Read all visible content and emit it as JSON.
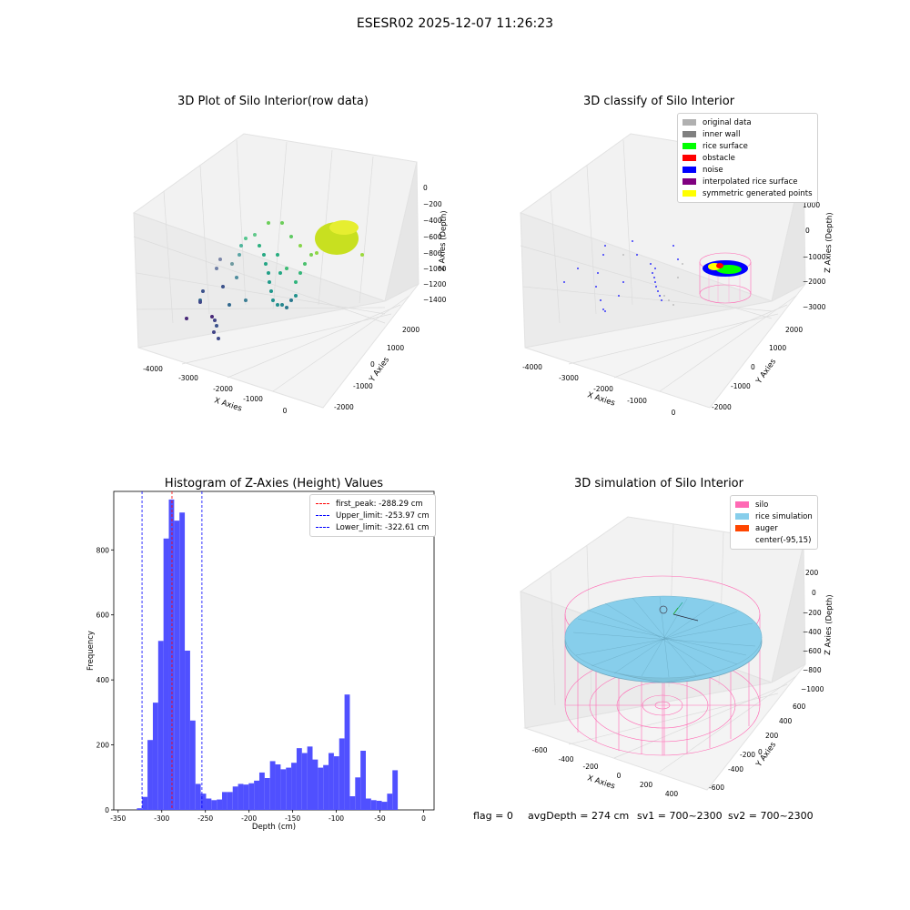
{
  "figure": {
    "suptitle": "ESESR02 2025-12-07 11:26:23",
    "status": {
      "flag": "flag = 0",
      "avg_depth": "avgDepth = 274 cm",
      "sv1": "sv1 = 700~2300",
      "sv2": "sv2 = 700~2300"
    }
  },
  "panels": {
    "raw": {
      "title": "3D Plot of Silo Interior(row data)",
      "xlabel": "X Axies",
      "ylabel": "Y Axies",
      "zlabel": "Z Axies (Depth)",
      "xticks": [
        "-4000",
        "-3000",
        "-2000",
        "-1000",
        "0"
      ],
      "yticks": [
        "-2000",
        "-1000",
        "0",
        "1000",
        "2000"
      ],
      "zticks": [
        "0",
        "−200",
        "−400",
        "−600",
        "−800",
        "−1000",
        "−1200",
        "−1400"
      ]
    },
    "classify": {
      "title": "3D classify of Silo Interior",
      "xlabel": "X Axies",
      "ylabel": "Y Axies",
      "zlabel": "Z Axies (Depth)",
      "xticks": [
        "-4000",
        "-3000",
        "-2000",
        "-1000",
        "0"
      ],
      "yticks": [
        "-2000",
        "-1000",
        "0",
        "1000",
        "2000"
      ],
      "zticks": [
        "1000",
        "0",
        "−1000",
        "−2000",
        "−3000"
      ],
      "legend": [
        {
          "label": "original data",
          "color": "#b0b0b0"
        },
        {
          "label": "inner wall",
          "color": "#808080"
        },
        {
          "label": "rice surface",
          "color": "#00ff00"
        },
        {
          "label": "obstacle",
          "color": "#ff0000"
        },
        {
          "label": "noise",
          "color": "#0000ff"
        },
        {
          "label": "interpolated rice surface",
          "color": "#800080"
        },
        {
          "label": "symmetric generated points",
          "color": "#ffff00"
        }
      ]
    },
    "simulation": {
      "title": "3D simulation of Silo Interior",
      "xlabel": "X Axies",
      "ylabel": "Y Axies",
      "zlabel": "Z Axies (Depth)",
      "xticks": [
        "-600",
        "-400",
        "-200",
        "0",
        "200",
        "400"
      ],
      "yticks": [
        "-600",
        "-400",
        "-200",
        "0",
        "200",
        "400",
        "600"
      ],
      "zticks": [
        "200",
        "0",
        "−200",
        "−400",
        "−600",
        "−800",
        "−1000"
      ],
      "legend": [
        {
          "label": "silo",
          "color": "#ff69b4"
        },
        {
          "label": "rice simulation",
          "color": "#87ceeb"
        },
        {
          "label": "auger",
          "color": "#ff4500"
        },
        {
          "label": "center(-95,15)",
          "color": "#ffffff"
        }
      ]
    }
  },
  "chart_data": {
    "type": "bar",
    "title": "Histogram of Z-Axies (Height) Values",
    "xlabel": "Depth (cm)",
    "ylabel": "Frequency",
    "xlim": [
      -355,
      12
    ],
    "ylim": [
      0,
      980
    ],
    "xticks": [
      -350,
      -300,
      -250,
      -200,
      -150,
      -100,
      -50,
      0
    ],
    "yticks": [
      0,
      200,
      400,
      600,
      800
    ],
    "bin_start": -328.5,
    "bin_width": 6.1,
    "values": [
      5,
      40,
      215,
      330,
      520,
      835,
      955,
      890,
      915,
      490,
      275,
      80,
      50,
      35,
      30,
      32,
      55,
      55,
      72,
      80,
      78,
      82,
      90,
      115,
      98,
      150,
      140,
      125,
      130,
      145,
      190,
      175,
      195,
      155,
      130,
      138,
      175,
      165,
      220,
      355,
      42,
      100,
      182,
      35,
      30,
      28,
      25,
      50,
      122
    ],
    "bar_color": "#5050ff",
    "lines": [
      {
        "label": "first_peak: -288.29 cm",
        "x": -288.29,
        "color": "#ff0000"
      },
      {
        "label": "Upper_limit: -253.97 cm",
        "x": -253.97,
        "color": "#0000ff"
      },
      {
        "label": "Lower_limit: -322.61 cm",
        "x": -322.61,
        "color": "#0000ff"
      }
    ],
    "legend_position": "top-right"
  }
}
